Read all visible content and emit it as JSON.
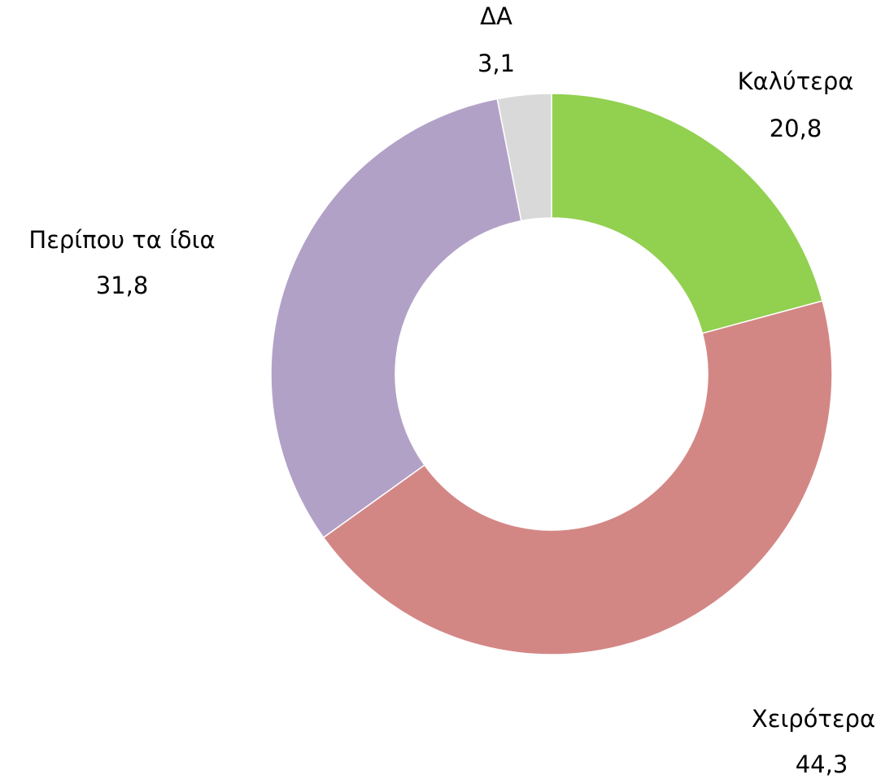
{
  "chart_data": {
    "type": "donut",
    "categories": [
      "Καλύτερα",
      "Χειρότερα",
      "Περίπου τα ίδια",
      "ΔΑ"
    ],
    "values": [
      20.8,
      44.3,
      31.8,
      3.1
    ],
    "value_labels": [
      "20,8",
      "44,3",
      "31,8",
      "3,1"
    ],
    "colors": [
      "#92d050",
      "#d38785",
      "#b2a1c7",
      "#d9d9d9"
    ]
  }
}
